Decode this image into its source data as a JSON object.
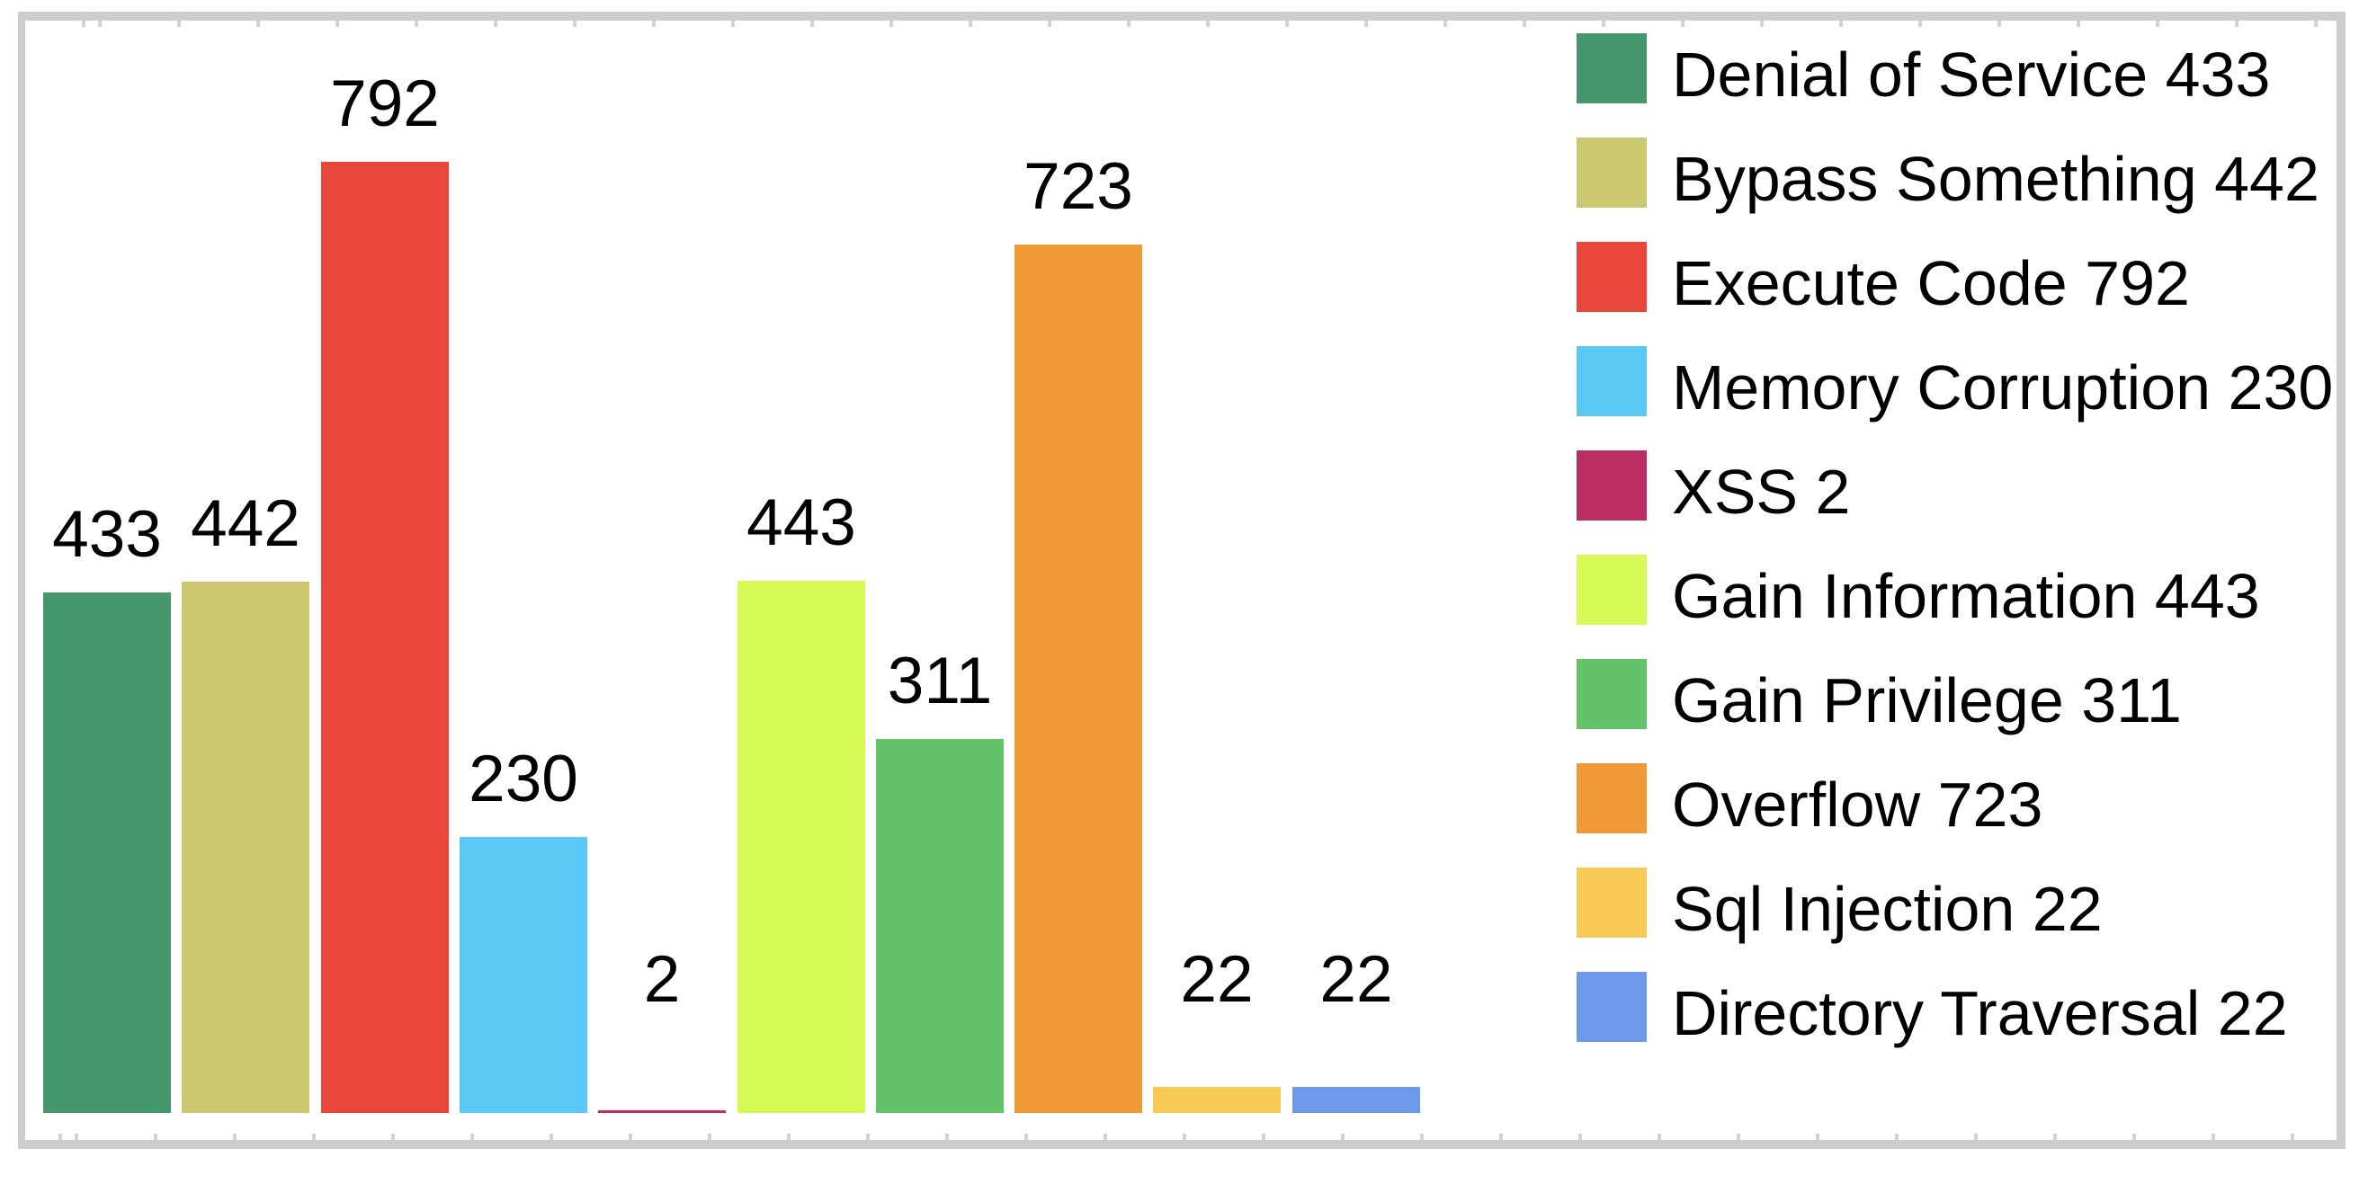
{
  "chart_data": {
    "type": "bar",
    "title": "",
    "xlabel": "",
    "ylabel": "",
    "categories": [
      "Denial of Service",
      "Bypass Something",
      "Execute Code",
      "Memory Corruption",
      "XSS",
      "Gain Information",
      "Gain Privilege",
      "Overflow",
      "Sql Injection",
      "Directory Traversal"
    ],
    "values": [
      433,
      442,
      792,
      230,
      2,
      443,
      311,
      723,
      22,
      22
    ],
    "value_labels": [
      "433",
      "442",
      "792",
      "230",
      "2",
      "443",
      "311",
      "723",
      "22",
      "22"
    ],
    "colors": [
      "#44986c",
      "#cbc86f",
      "#ea473c",
      "#5ac8f5",
      "#ba2e63",
      "#d6f955",
      "#62c368",
      "#ef9a36",
      "#f8c955",
      "#6d9aea"
    ],
    "legend_labels": [
      "Denial of Service 433",
      "Bypass Something 442",
      "Execute Code 792",
      "Memory Corruption 230",
      "XSS 2",
      "Gain Information 443",
      "Gain Privilege 311",
      "Overflow 723",
      "Sql Injection 22",
      "Directory Traversal 22"
    ],
    "legend_position": "right",
    "grid": false,
    "axes_visible": false,
    "ylim": [
      0,
      830
    ]
  },
  "frame": {
    "border_color": "#cdcdcd",
    "background_color": "#ffffff",
    "label_color": "#000000"
  }
}
